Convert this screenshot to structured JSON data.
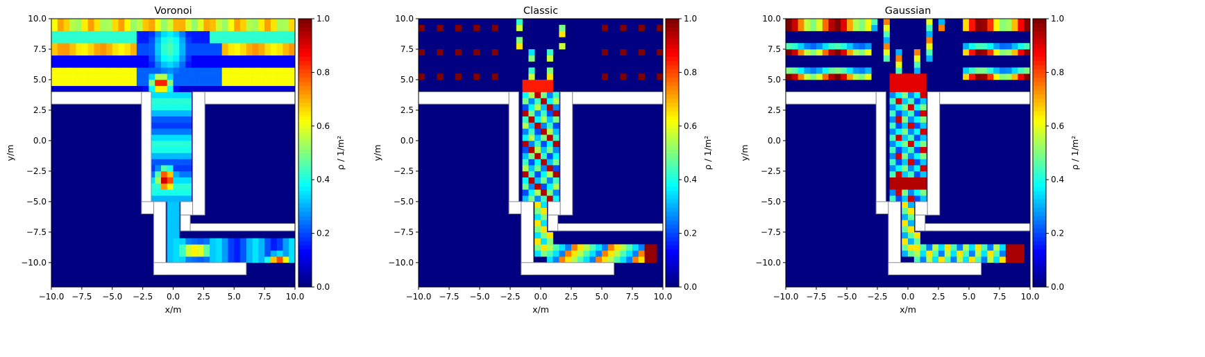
{
  "figure": {
    "background": "#ffffff",
    "frame_color": "#000000"
  },
  "colormap": {
    "name": "jet",
    "label": "ρ / 1/m²",
    "ticks": [
      "0.0",
      "0.2",
      "0.4",
      "0.6",
      "0.8",
      "1.0"
    ]
  },
  "chart_data": [
    {
      "type": "heatmap",
      "title": "Voronoi",
      "xlabel": "x/m",
      "ylabel": "y/m",
      "xlim": [
        -10,
        10
      ],
      "ylim": [
        -12,
        10
      ],
      "xticks": [
        "−10.0",
        "−7.5",
        "−5.0",
        "−2.5",
        "0.0",
        "2.5",
        "5.0",
        "7.5",
        "10.0"
      ],
      "yticks": [
        "10.0",
        "7.5",
        "5.0",
        "2.5",
        "0.0",
        "−2.5",
        "−5.0",
        "−7.5",
        "−10.0"
      ],
      "clim": [
        0,
        1
      ],
      "colorbar_label": "ρ / 1/m²",
      "method": "voronoi",
      "grid": false
    },
    {
      "type": "heatmap",
      "title": "Classic",
      "xlabel": "x/m",
      "ylabel": "y/m",
      "xlim": [
        -10,
        10
      ],
      "ylim": [
        -12,
        10
      ],
      "xticks": [
        "−10.0",
        "−7.5",
        "−5.0",
        "−2.5",
        "0.0",
        "2.5",
        "5.0",
        "7.5",
        "10.0"
      ],
      "yticks": [
        "10.0",
        "7.5",
        "5.0",
        "2.5",
        "0.0",
        "−2.5",
        "−5.0",
        "−7.5",
        "−10.0"
      ],
      "clim": [
        0,
        1
      ],
      "colorbar_label": "ρ / 1/m²",
      "method": "classic",
      "grid": false
    },
    {
      "type": "heatmap",
      "title": "Gaussian",
      "xlabel": "x/m",
      "ylabel": "y/m",
      "xlim": [
        -10,
        10
      ],
      "ylim": [
        -12,
        10
      ],
      "xticks": [
        "−10.0",
        "−7.5",
        "−5.0",
        "−2.5",
        "0.0",
        "2.5",
        "5.0",
        "7.5",
        "10.0"
      ],
      "yticks": [
        "10.0",
        "7.5",
        "5.0",
        "2.5",
        "0.0",
        "−2.5",
        "−5.0",
        "−7.5",
        "−10.0"
      ],
      "clim": [
        0,
        1
      ],
      "colorbar_label": "ρ / 1/m²",
      "method": "gaussian",
      "grid": false
    }
  ]
}
